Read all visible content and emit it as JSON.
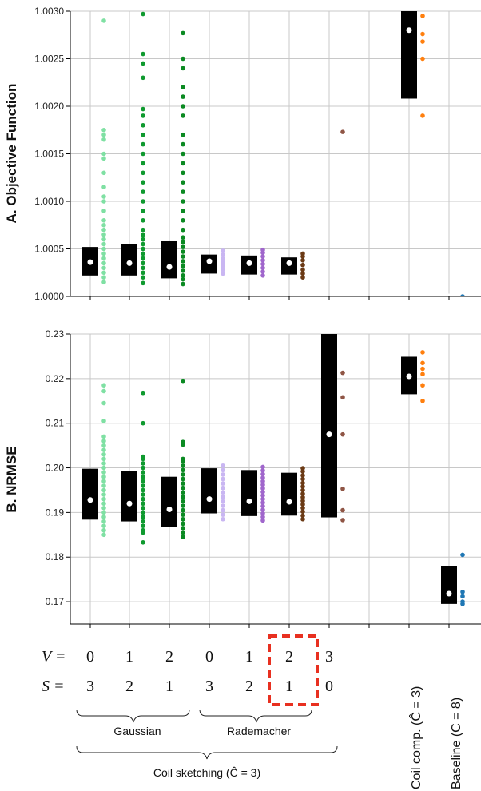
{
  "chart_data": [
    {
      "type": "box",
      "ylabel": "A. Objective Function",
      "ylim": [
        1.0,
        1.003
      ],
      "yticks": [
        "1.0000",
        "1.0005",
        "1.0010",
        "1.0015",
        "1.0020",
        "1.0025",
        "1.0030"
      ],
      "grid": true,
      "series": [
        {
          "color": "#7fe0a3",
          "median": 1.00036,
          "q1": 1.00022,
          "q3": 1.00052,
          "points": [
            1.00015,
            1.0002,
            1.00025,
            1.0003,
            1.00035,
            1.0004,
            1.00045,
            1.0005,
            1.00055,
            1.0006,
            1.00065,
            1.0007,
            1.00075,
            1.0008,
            1.0009,
            1.001,
            1.00105,
            1.00115,
            1.0013,
            1.00145,
            1.0015,
            1.00165,
            1.0017,
            1.00175,
            1.0029
          ]
        },
        {
          "color": "#0f9a2f",
          "median": 1.00035,
          "q1": 1.00022,
          "q3": 1.00055,
          "points": [
            1.00014,
            1.0002,
            1.00025,
            1.0003,
            1.00035,
            1.0004,
            1.00045,
            1.0005,
            1.00055,
            1.0006,
            1.00065,
            1.0007,
            1.0008,
            1.0009,
            1.001,
            1.0011,
            1.0012,
            1.0013,
            1.0014,
            1.0015,
            1.0016,
            1.0017,
            1.0018,
            1.0019,
            1.00197,
            1.0023,
            1.00245,
            1.00255,
            1.00297
          ]
        },
        {
          "color": "#0b8a22",
          "median": 1.00031,
          "q1": 1.00019,
          "q3": 1.00058,
          "points": [
            1.00013,
            1.00018,
            1.00022,
            1.00027,
            1.00032,
            1.00037,
            1.00042,
            1.00047,
            1.00052,
            1.00057,
            1.00062,
            1.0007,
            1.0008,
            1.0009,
            1.001,
            1.0011,
            1.0012,
            1.0013,
            1.0014,
            1.0015,
            1.0016,
            1.0017,
            1.0019,
            1.002,
            1.0021,
            1.0022,
            1.0024,
            1.0025,
            1.00277
          ]
        },
        {
          "color": "#c9b6f2",
          "median": 1.00037,
          "q1": 1.00024,
          "q3": 1.00044,
          "points": [
            1.00024,
            1.00028,
            1.00032,
            1.00036,
            1.0004,
            1.00044,
            1.00048
          ]
        },
        {
          "color": "#a066cc",
          "median": 1.00035,
          "q1": 1.00023,
          "q3": 1.00043,
          "points": [
            1.00022,
            1.00026,
            1.0003,
            1.00034,
            1.00038,
            1.00042,
            1.00046,
            1.00049
          ]
        },
        {
          "color": "#6b3a15",
          "median": 1.00035,
          "q1": 1.00023,
          "q3": 1.00041,
          "points": [
            1.0002,
            1.00024,
            1.00028,
            1.00033,
            1.00038,
            1.00042,
            1.00045
          ]
        },
        {
          "color": "#8f5545",
          "points": [
            1.00173
          ]
        },
        {
          "color": "#ff7f0e",
          "median": 1.0028,
          "q1": 1.00208,
          "q3": 1.0031,
          "points": [
            1.0019,
            1.0025,
            1.00268,
            1.00276,
            1.00295
          ]
        },
        {
          "color": "#1f77b4",
          "median": 1.0,
          "q1": 1.0,
          "q3": 1.0,
          "points": [
            1.0
          ]
        }
      ]
    },
    {
      "type": "box",
      "ylabel": "B. NRMSE",
      "ylim": [
        0.165,
        0.23
      ],
      "yticks": [
        "0.17",
        "0.18",
        "0.19",
        "0.20",
        "0.21",
        "0.22",
        "0.23"
      ],
      "grid": true,
      "series": [
        {
          "color": "#7fe0a3",
          "median": 0.1928,
          "q1": 0.1884,
          "q3": 0.1998,
          "points": [
            0.185,
            0.186,
            0.187,
            0.188,
            0.189,
            0.19,
            0.191,
            0.192,
            0.193,
            0.194,
            0.195,
            0.196,
            0.197,
            0.198,
            0.199,
            0.2,
            0.201,
            0.202,
            0.203,
            0.204,
            0.205,
            0.206,
            0.207,
            0.2105,
            0.2145,
            0.2172,
            0.2185
          ]
        },
        {
          "color": "#0f9a2f",
          "median": 0.192,
          "q1": 0.188,
          "q3": 0.1992,
          "points": [
            0.1833,
            0.1855,
            0.186,
            0.187,
            0.188,
            0.189,
            0.19,
            0.191,
            0.192,
            0.193,
            0.194,
            0.195,
            0.196,
            0.197,
            0.198,
            0.199,
            0.2,
            0.201,
            0.202,
            0.2025,
            0.21,
            0.2168
          ]
        },
        {
          "color": "#0b8a22",
          "median": 0.1907,
          "q1": 0.1868,
          "q3": 0.198,
          "points": [
            0.1845,
            0.1855,
            0.1865,
            0.1875,
            0.1885,
            0.1895,
            0.1905,
            0.1915,
            0.1925,
            0.1935,
            0.1945,
            0.1955,
            0.1965,
            0.1975,
            0.1985,
            0.1995,
            0.2005,
            0.2015,
            0.202,
            0.2052,
            0.2058,
            0.2195
          ]
        },
        {
          "color": "#c9b6f2",
          "median": 0.193,
          "q1": 0.1898,
          "q3": 0.1999,
          "points": [
            0.1885,
            0.1895,
            0.1905,
            0.1915,
            0.1925,
            0.1935,
            0.1945,
            0.1955,
            0.1965,
            0.1975,
            0.1985,
            0.1995,
            0.2005
          ]
        },
        {
          "color": "#a066cc",
          "median": 0.1925,
          "q1": 0.1892,
          "q3": 0.1995,
          "points": [
            0.1882,
            0.189,
            0.1898,
            0.1906,
            0.1914,
            0.1922,
            0.193,
            0.1938,
            0.1946,
            0.1954,
            0.1962,
            0.197,
            0.1978,
            0.1986,
            0.1994,
            0.2002
          ]
        },
        {
          "color": "#6b3a15",
          "median": 0.1924,
          "q1": 0.1893,
          "q3": 0.1989,
          "points": [
            0.1885,
            0.1893,
            0.1902,
            0.191,
            0.1918,
            0.1926,
            0.1934,
            0.1942,
            0.195,
            0.1958,
            0.1966,
            0.1975,
            0.1983,
            0.1992,
            0.1999
          ]
        },
        {
          "color": "#8f5545",
          "median": 0.2075,
          "q1": 0.1889,
          "q3": 0.231,
          "points": [
            0.1883,
            0.1905,
            0.1953,
            0.2075,
            0.2158,
            0.2213
          ]
        },
        {
          "color": "#ff7f0e",
          "median": 0.2205,
          "q1": 0.2165,
          "q3": 0.2249,
          "points": [
            0.215,
            0.2185,
            0.221,
            0.2222,
            0.2235,
            0.2259
          ]
        },
        {
          "color": "#1f77b4",
          "median": 0.1718,
          "q1": 0.1695,
          "q3": 0.178,
          "points": [
            0.1695,
            0.17,
            0.1712,
            0.1722,
            0.1805
          ]
        }
      ]
    }
  ],
  "xaxis": {
    "v_label": "V =",
    "s_label": "S =",
    "v_values": [
      "0",
      "1",
      "2",
      "0",
      "1",
      "2",
      "3"
    ],
    "s_values": [
      "3",
      "2",
      "1",
      "3",
      "2",
      "1",
      "0"
    ],
    "group_gaussian": "Gaussian",
    "group_rademacher": "Rademacher",
    "group_sketching": "Coil sketching (Ĉ = 3)",
    "coil_comp_label": "Coil comp. (Ĉ = 3)",
    "baseline_label": "Baseline (C = 8)"
  },
  "colors": {
    "highlight": "#e83020",
    "box": "#000000",
    "grid": "#c8c8c8",
    "median": "#ffffff"
  }
}
